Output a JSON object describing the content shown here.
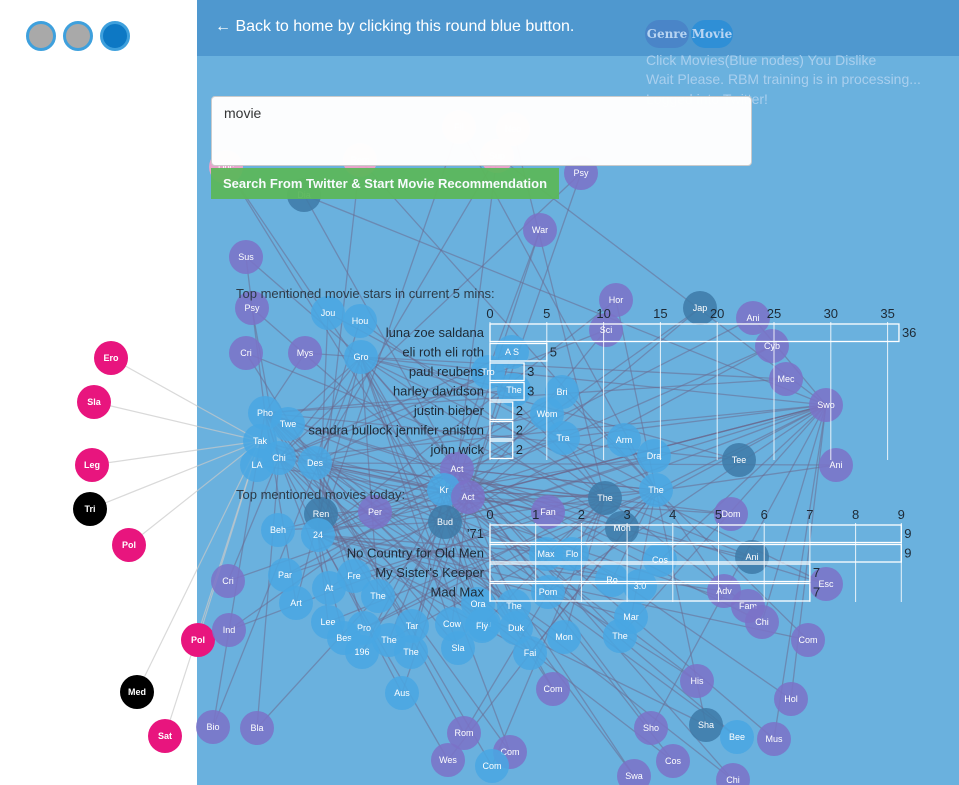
{
  "header": {
    "back_text": "← Back to home by clicking this round blue button.",
    "genre_label": "Genre",
    "movie_label": "Movie"
  },
  "status": {
    "line1": "Click Movies(Blue nodes) You Dislike",
    "line2": "Wait Please. RBM training is in processing...",
    "line3": "Logged into Twitter!"
  },
  "search": {
    "value": "movie",
    "button_label": "Search From Twitter & Start Movie Recommendation"
  },
  "colors": {
    "main_bg": "#6ab1de",
    "topbar_bg": "#4f98cf",
    "pink_node": "#e8157e",
    "black_node": "#000000",
    "blue_node": "#4aa6e0",
    "purple_node": "#7b74c9",
    "button_green": "#5cb85c"
  },
  "graph": {
    "nodes": [
      {
        "label": "Ero",
        "kind": "pink"
      },
      {
        "label": "Sla",
        "kind": "pink"
      },
      {
        "label": "Leg",
        "kind": "pink"
      },
      {
        "label": "Tri",
        "kind": "black"
      },
      {
        "label": "Pol",
        "kind": "pink"
      },
      {
        "label": "Pol",
        "kind": "pink"
      },
      {
        "label": "Med",
        "kind": "black"
      },
      {
        "label": "Sat",
        "kind": "pink"
      },
      {
        "label": "Fil",
        "kind": "lightpink"
      },
      {
        "label": "Neo",
        "kind": "lightpink"
      },
      {
        "label": "Sup",
        "kind": "lightpink"
      },
      {
        "label": "Rem",
        "kind": "lightpink"
      },
      {
        "label": "Doc",
        "kind": "lightpink"
      },
      {
        "label": "Dia",
        "kind": "dark"
      },
      {
        "label": "Psy",
        "kind": "purple"
      },
      {
        "label": "War",
        "kind": "purple"
      },
      {
        "label": "Sus",
        "kind": "purple"
      },
      {
        "label": "Psy",
        "kind": "purple"
      },
      {
        "label": "Cri",
        "kind": "purple"
      },
      {
        "label": "Mys",
        "kind": "purple"
      },
      {
        "label": "Jou",
        "kind": "blue"
      },
      {
        "label": "Hou",
        "kind": "blue"
      },
      {
        "label": "Gro",
        "kind": "blue"
      },
      {
        "label": "Hor",
        "kind": "purple"
      },
      {
        "label": "Jap",
        "kind": "dark"
      },
      {
        "label": "Ani",
        "kind": "purple"
      },
      {
        "label": "Sci",
        "kind": "purple"
      },
      {
        "label": "Cyb",
        "kind": "purple"
      },
      {
        "label": "Mec",
        "kind": "purple"
      },
      {
        "label": "Swo",
        "kind": "purple"
      },
      {
        "label": "Ani",
        "kind": "purple"
      },
      {
        "label": "Tee",
        "kind": "dark"
      },
      {
        "label": "Bri",
        "kind": "blue"
      },
      {
        "label": "Wom",
        "kind": "blue"
      },
      {
        "label": "Tra",
        "kind": "blue"
      },
      {
        "label": "Arm",
        "kind": "blue"
      },
      {
        "label": "Dra",
        "kind": "blue"
      },
      {
        "label": "The",
        "kind": "blue"
      },
      {
        "label": "Pho",
        "kind": "blue"
      },
      {
        "label": "Tak",
        "kind": "blue"
      },
      {
        "label": "Chi",
        "kind": "blue"
      },
      {
        "label": "LA",
        "kind": "blue"
      },
      {
        "label": "Des",
        "kind": "blue"
      },
      {
        "label": "Twe",
        "kind": "blue"
      },
      {
        "label": "Act",
        "kind": "purple"
      },
      {
        "label": "Kr",
        "kind": "blue"
      },
      {
        "label": "Act",
        "kind": "purple"
      },
      {
        "label": "Ren",
        "kind": "dark"
      },
      {
        "label": "Per",
        "kind": "purple"
      },
      {
        "label": "Bud",
        "kind": "dark"
      },
      {
        "label": "Fan",
        "kind": "purple"
      },
      {
        "label": "The",
        "kind": "dark"
      },
      {
        "label": "Mon",
        "kind": "dark"
      },
      {
        "label": "Dom",
        "kind": "purple"
      },
      {
        "label": "Ani",
        "kind": "dark"
      },
      {
        "label": "Esc",
        "kind": "purple"
      },
      {
        "label": "Adv",
        "kind": "purple"
      },
      {
        "label": "Fam",
        "kind": "purple"
      },
      {
        "label": "Chi",
        "kind": "purple"
      },
      {
        "label": "Com",
        "kind": "purple"
      },
      {
        "label": "Beh",
        "kind": "blue"
      },
      {
        "label": "24",
        "kind": "blue"
      },
      {
        "label": "Cri",
        "kind": "purple"
      },
      {
        "label": "Par",
        "kind": "blue"
      },
      {
        "label": "Art",
        "kind": "blue"
      },
      {
        "label": "At",
        "kind": "blue"
      },
      {
        "label": "Fre",
        "kind": "blue"
      },
      {
        "label": "The",
        "kind": "blue"
      },
      {
        "label": "Lee",
        "kind": "blue"
      },
      {
        "label": "Pro",
        "kind": "blue"
      },
      {
        "label": "Ind",
        "kind": "purple"
      },
      {
        "label": "Bes",
        "kind": "blue"
      },
      {
        "label": "196",
        "kind": "blue"
      },
      {
        "label": "The",
        "kind": "blue"
      },
      {
        "label": "Tar",
        "kind": "blue"
      },
      {
        "label": "The",
        "kind": "blue"
      },
      {
        "label": "Sla",
        "kind": "blue"
      },
      {
        "label": "Cow",
        "kind": "blue"
      },
      {
        "label": "You",
        "kind": "blue"
      },
      {
        "label": "Duk",
        "kind": "blue"
      },
      {
        "label": "Fai",
        "kind": "blue"
      },
      {
        "label": "Mon",
        "kind": "blue"
      },
      {
        "label": "The",
        "kind": "blue"
      },
      {
        "label": "Mar",
        "kind": "blue"
      },
      {
        "label": "His",
        "kind": "purple"
      },
      {
        "label": "Hol",
        "kind": "purple"
      },
      {
        "label": "Aus",
        "kind": "blue"
      },
      {
        "label": "Com",
        "kind": "purple"
      },
      {
        "label": "Bio",
        "kind": "purple"
      },
      {
        "label": "Bla",
        "kind": "purple"
      },
      {
        "label": "Rom",
        "kind": "purple"
      },
      {
        "label": "Com",
        "kind": "purple"
      },
      {
        "label": "Wes",
        "kind": "purple"
      },
      {
        "label": "Com",
        "kind": "blue"
      },
      {
        "label": "Sho",
        "kind": "purple"
      },
      {
        "label": "Sha",
        "kind": "dark"
      },
      {
        "label": "Bee",
        "kind": "blue"
      },
      {
        "label": "Mus",
        "kind": "purple"
      },
      {
        "label": "Cos",
        "kind": "purple"
      },
      {
        "label": "Swa",
        "kind": "purple"
      },
      {
        "label": "Chi",
        "kind": "purple"
      },
      {
        "label": "A S",
        "kind": "blue"
      },
      {
        "label": "Tro",
        "kind": "blue"
      },
      {
        "label": "The",
        "kind": "blue"
      },
      {
        "label": "Flo",
        "kind": "blue"
      },
      {
        "label": "Max",
        "kind": "blue"
      },
      {
        "label": "Pom",
        "kind": "blue"
      },
      {
        "label": "Ro",
        "kind": "blue"
      },
      {
        "label": "3:0",
        "kind": "blue"
      },
      {
        "label": "Cos",
        "kind": "blue"
      },
      {
        "label": "The",
        "kind": "blue"
      },
      {
        "label": "Ora",
        "kind": "blue"
      },
      {
        "label": "Fly",
        "kind": "blue"
      }
    ]
  },
  "chart_data": [
    {
      "type": "bar",
      "orientation": "horizontal",
      "title": "Top mentioned movie stars in current 5 mins:",
      "categories": [
        "luna zoe saldana",
        "eli roth eli roth",
        "paul reubens",
        "harley davidson",
        "justin bieber",
        "sandra bullock jennifer aniston",
        "john wick"
      ],
      "values": [
        36,
        5,
        3,
        3,
        2,
        2,
        2
      ],
      "ticks": [
        "0",
        "5",
        "10",
        "15",
        "20",
        "25",
        "30",
        "35"
      ],
      "xlim": [
        0,
        36
      ],
      "grid": true
    },
    {
      "type": "bar",
      "orientation": "horizontal",
      "title": "Top mentioned movies today:",
      "categories": [
        "'71",
        "No Country for Old Men",
        "My Sister's Keeper",
        "Mad Max"
      ],
      "values": [
        9,
        9,
        7,
        7
      ],
      "ticks": [
        "0",
        "1",
        "2",
        "3",
        "4",
        "5",
        "6",
        "7",
        "8",
        "9"
      ],
      "xlim": [
        0,
        9
      ],
      "grid": true
    }
  ]
}
